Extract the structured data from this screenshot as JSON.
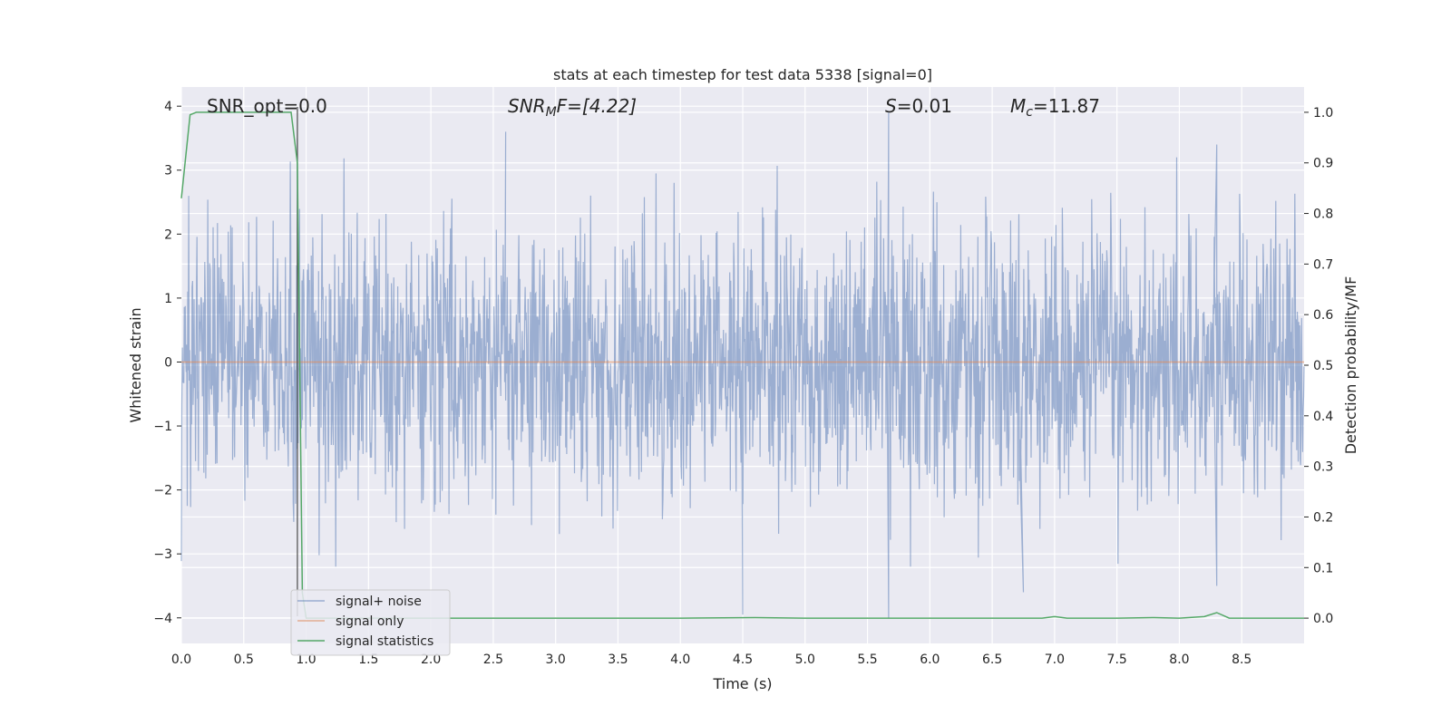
{
  "chart_data": {
    "type": "line",
    "title": "stats at each timestep for test data 5338 [signal=0]",
    "xlabel": "Time (s)",
    "ylabel": "Whitened strain",
    "y2label": "Detection probability/MF",
    "xlim": [
      0,
      9.0
    ],
    "ylim": [
      -4.4,
      4.3
    ],
    "y2lim": [
      -0.05,
      1.05
    ],
    "xticks": [
      0.0,
      0.5,
      1.0,
      1.5,
      2.0,
      2.5,
      3.0,
      3.5,
      4.0,
      4.5,
      5.0,
      5.5,
      6.0,
      6.5,
      7.0,
      7.5,
      8.0,
      8.5
    ],
    "xtick_labels": [
      "0.0",
      "0.5",
      "1.0",
      "1.5",
      "2.0",
      "2.5",
      "3.0",
      "3.5",
      "4.0",
      "4.5",
      "5.0",
      "5.5",
      "6.0",
      "6.5",
      "7.0",
      "7.5",
      "8.0",
      "8.5"
    ],
    "yticks": [
      -4,
      -3,
      -2,
      -1,
      0,
      1,
      2,
      3,
      4
    ],
    "ytick_labels": [
      "−4",
      "−3",
      "−2",
      "−1",
      "0",
      "1",
      "2",
      "3",
      "4"
    ],
    "y2ticks": [
      0.0,
      0.1,
      0.2,
      0.3,
      0.4,
      0.5,
      0.6,
      0.7,
      0.8,
      0.9,
      1.0
    ],
    "y2tick_labels": [
      "0.0",
      "0.1",
      "0.2",
      "0.3",
      "0.4",
      "0.5",
      "0.6",
      "0.7",
      "0.8",
      "0.9",
      "1.0"
    ],
    "grid": true,
    "legend_position": "lower-left",
    "annotations": {
      "snr_opt": "SNR_opt=0.0",
      "snr_mf_main": "SNR",
      "snr_mf_sub": "M",
      "snr_mf_rest": "F=[4.22]",
      "s_main": "S",
      "s_rest": "=0.01",
      "mc_main": "M",
      "mc_sub": "c",
      "mc_rest": "=11.87"
    },
    "marker_line_x": 0.93,
    "series": [
      {
        "name": "signal+ noise",
        "color": "#4c72b0",
        "axis": "left",
        "note": "whitened noise, approx. Gaussian, std ~1, peaks near ±3.9",
        "notable_peaks": [
          [
            0.93,
            3.5
          ],
          [
            2.6,
            3.6
          ],
          [
            5.67,
            3.9
          ],
          [
            5.67,
            -4.0
          ],
          [
            4.5,
            -3.95
          ],
          [
            6.75,
            -3.6
          ],
          [
            8.3,
            3.4
          ],
          [
            8.3,
            -3.5
          ]
        ]
      },
      {
        "name": "signal only",
        "color": "#dd8452",
        "axis": "left",
        "x": [
          0,
          9.0
        ],
        "y": [
          0,
          0
        ]
      },
      {
        "name": "signal statistics",
        "color": "#55a868",
        "axis": "right",
        "x": [
          0.0,
          0.07,
          0.12,
          0.3,
          0.5,
          0.7,
          0.88,
          0.93,
          0.97,
          1.0,
          1.5,
          2.0,
          3.0,
          4.0,
          4.6,
          5.0,
          6.0,
          6.9,
          7.0,
          7.1,
          7.5,
          7.8,
          8.0,
          8.2,
          8.3,
          8.4,
          9.0
        ],
        "y": [
          0.83,
          0.995,
          1.0,
          1.0,
          1.0,
          1.0,
          1.0,
          0.9,
          0.05,
          0.0,
          0.0,
          0.0,
          0.0,
          0.0,
          0.001,
          0.0,
          0.0,
          0.0,
          0.003,
          0.0,
          0.0,
          0.001,
          0.0,
          0.003,
          0.011,
          0.0,
          0.0
        ]
      }
    ]
  }
}
